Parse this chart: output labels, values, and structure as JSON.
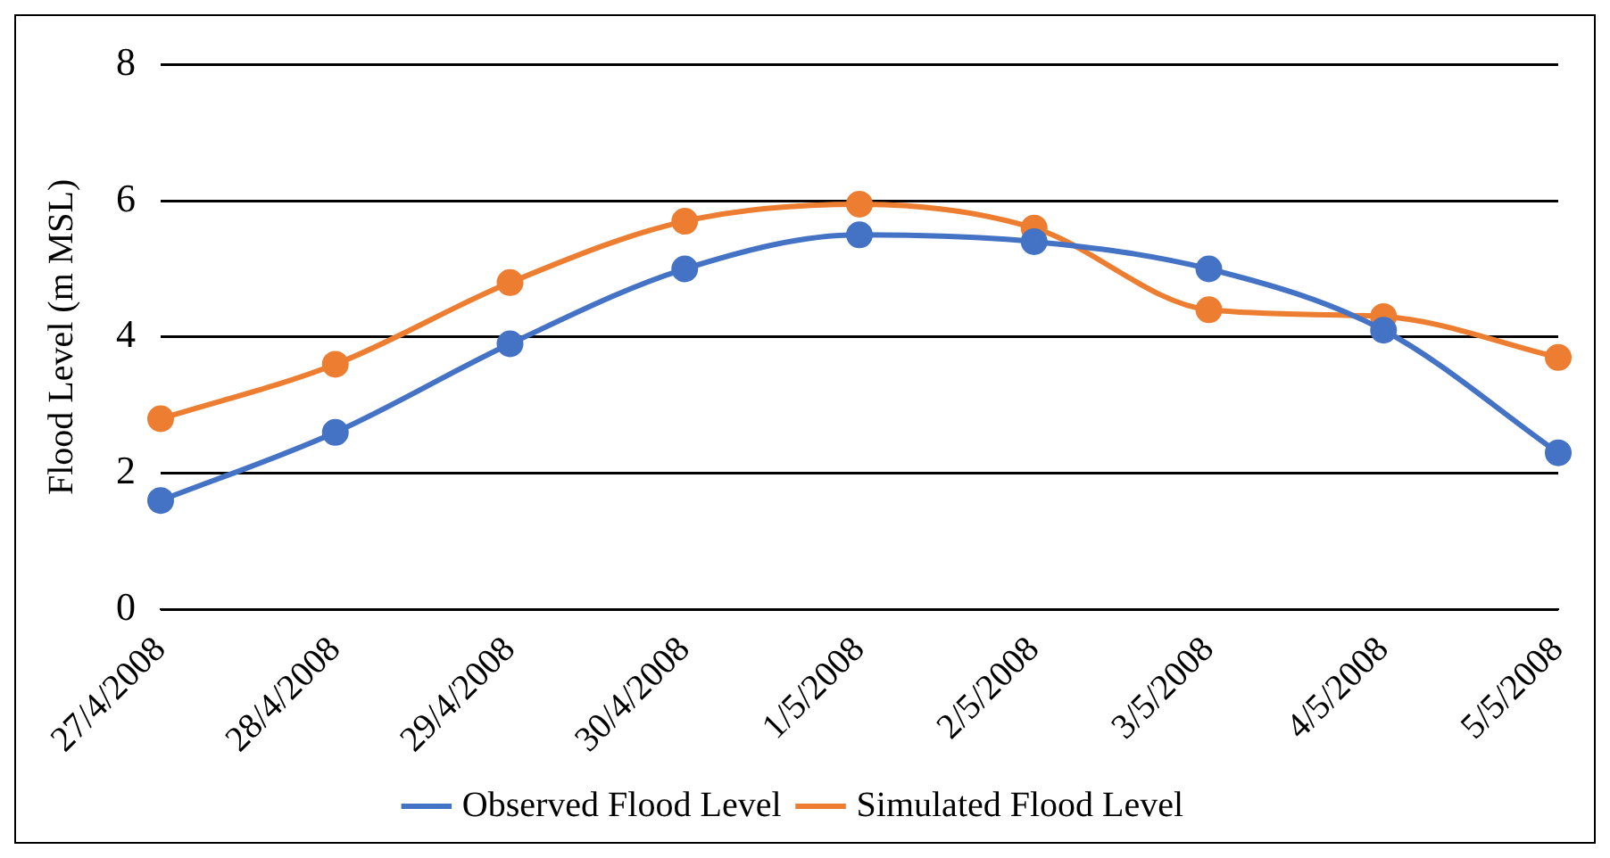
{
  "chart_data": {
    "type": "line",
    "ylabel": "Flood Level (m MSL)",
    "categories": [
      "27/4/2008",
      "28/4/2008",
      "29/4/2008",
      "30/4/2008",
      "1/5/2008",
      "2/5/2008",
      "3/5/2008",
      "4/5/2008",
      "5/5/2008"
    ],
    "series": [
      {
        "name": "Observed Flood Level",
        "color": "#4472c4",
        "values": [
          1.6,
          2.6,
          3.9,
          5.0,
          5.5,
          5.4,
          5.0,
          4.1,
          2.3
        ]
      },
      {
        "name": "Simulated Flood Level",
        "color": "#ed7d31",
        "values": [
          2.8,
          3.6,
          4.8,
          5.7,
          5.95,
          5.6,
          4.4,
          4.3,
          3.7
        ]
      }
    ],
    "ylim": [
      0,
      8
    ],
    "yticks": [
      0,
      2,
      4,
      6,
      8
    ],
    "grid": "y",
    "legend": "bottom",
    "marker": "circle",
    "line_style": "solid"
  }
}
